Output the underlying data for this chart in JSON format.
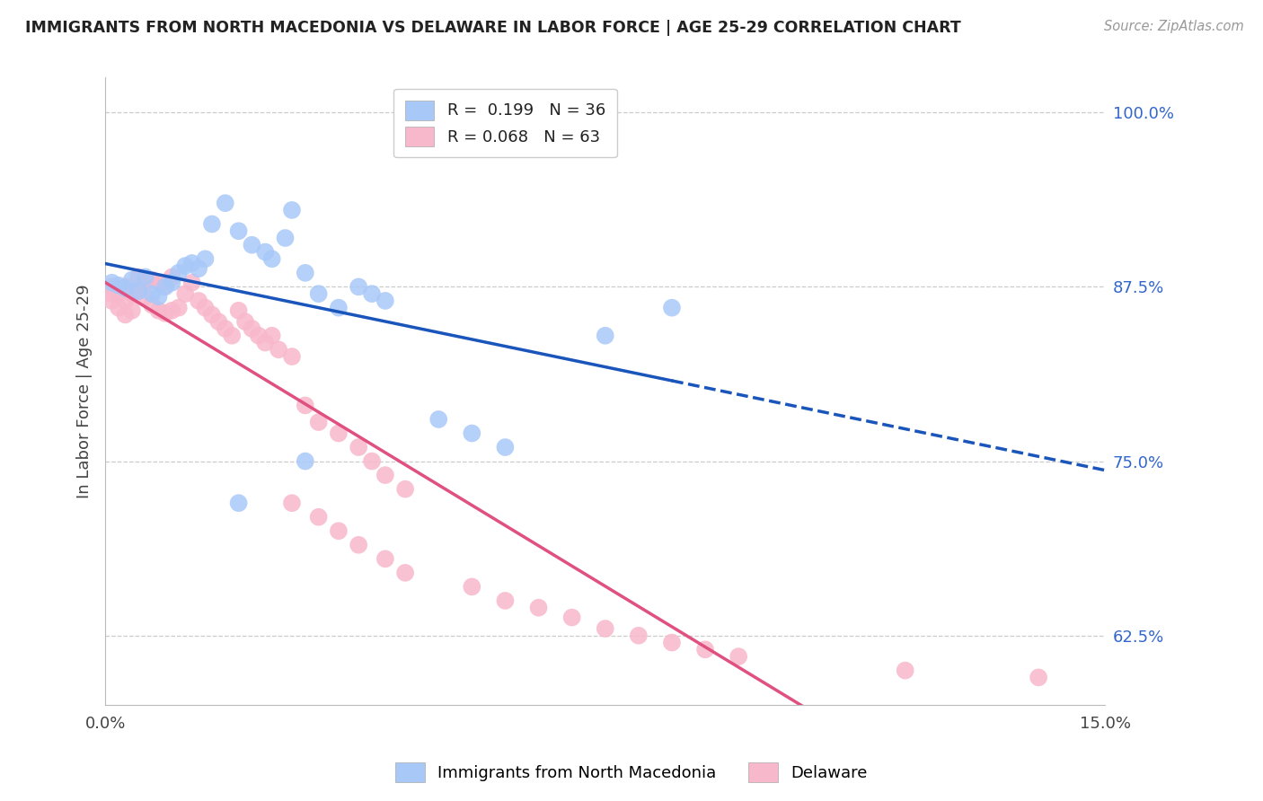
{
  "title": "IMMIGRANTS FROM NORTH MACEDONIA VS DELAWARE IN LABOR FORCE | AGE 25-29 CORRELATION CHART",
  "source_text": "Source: ZipAtlas.com",
  "ylabel": "In Labor Force | Age 25-29",
  "xmin": 0.0,
  "xmax": 0.15,
  "ymin": 0.575,
  "ymax": 1.025,
  "color_blue": "#a8c8f8",
  "color_pink": "#f8b8cc",
  "color_blue_line": "#1a55bb",
  "color_pink_line": "#e05080",
  "gridline_color": "#cccccc",
  "blue_scatter_x": [
    0.001,
    0.002,
    0.003,
    0.004,
    0.005,
    0.006,
    0.007,
    0.008,
    0.009,
    0.01,
    0.011,
    0.012,
    0.013,
    0.014,
    0.015,
    0.016,
    0.018,
    0.02,
    0.022,
    0.024,
    0.025,
    0.027,
    0.028,
    0.03,
    0.032,
    0.035,
    0.038,
    0.04,
    0.042,
    0.05,
    0.055,
    0.06,
    0.075,
    0.085,
    0.02,
    0.03
  ],
  "blue_scatter_y": [
    0.878,
    0.876,
    0.874,
    0.88,
    0.872,
    0.882,
    0.87,
    0.868,
    0.875,
    0.878,
    0.885,
    0.89,
    0.892,
    0.888,
    0.895,
    0.92,
    0.935,
    0.915,
    0.905,
    0.9,
    0.895,
    0.91,
    0.93,
    0.885,
    0.87,
    0.86,
    0.875,
    0.87,
    0.865,
    0.78,
    0.77,
    0.76,
    0.84,
    0.86,
    0.72,
    0.75
  ],
  "pink_scatter_x": [
    0.001,
    0.001,
    0.001,
    0.002,
    0.002,
    0.003,
    0.003,
    0.003,
    0.004,
    0.004,
    0.005,
    0.005,
    0.006,
    0.006,
    0.007,
    0.007,
    0.008,
    0.008,
    0.009,
    0.009,
    0.01,
    0.01,
    0.011,
    0.012,
    0.013,
    0.014,
    0.015,
    0.016,
    0.017,
    0.018,
    0.019,
    0.02,
    0.021,
    0.022,
    0.023,
    0.024,
    0.025,
    0.026,
    0.028,
    0.03,
    0.032,
    0.035,
    0.038,
    0.04,
    0.042,
    0.045,
    0.028,
    0.032,
    0.035,
    0.038,
    0.042,
    0.045,
    0.055,
    0.06,
    0.065,
    0.07,
    0.075,
    0.08,
    0.085,
    0.09,
    0.095,
    0.12,
    0.14
  ],
  "pink_scatter_y": [
    0.875,
    0.87,
    0.865,
    0.87,
    0.86,
    0.875,
    0.865,
    0.855,
    0.87,
    0.858,
    0.882,
    0.872,
    0.878,
    0.868,
    0.88,
    0.862,
    0.878,
    0.858,
    0.876,
    0.856,
    0.882,
    0.858,
    0.86,
    0.87,
    0.878,
    0.865,
    0.86,
    0.855,
    0.85,
    0.845,
    0.84,
    0.858,
    0.85,
    0.845,
    0.84,
    0.835,
    0.84,
    0.83,
    0.825,
    0.79,
    0.778,
    0.77,
    0.76,
    0.75,
    0.74,
    0.73,
    0.72,
    0.71,
    0.7,
    0.69,
    0.68,
    0.67,
    0.66,
    0.65,
    0.645,
    0.638,
    0.63,
    0.625,
    0.62,
    0.615,
    0.61,
    0.6,
    0.595
  ],
  "bottom_legend_blue": "Immigrants from North Macedonia",
  "bottom_legend_pink": "Delaware"
}
